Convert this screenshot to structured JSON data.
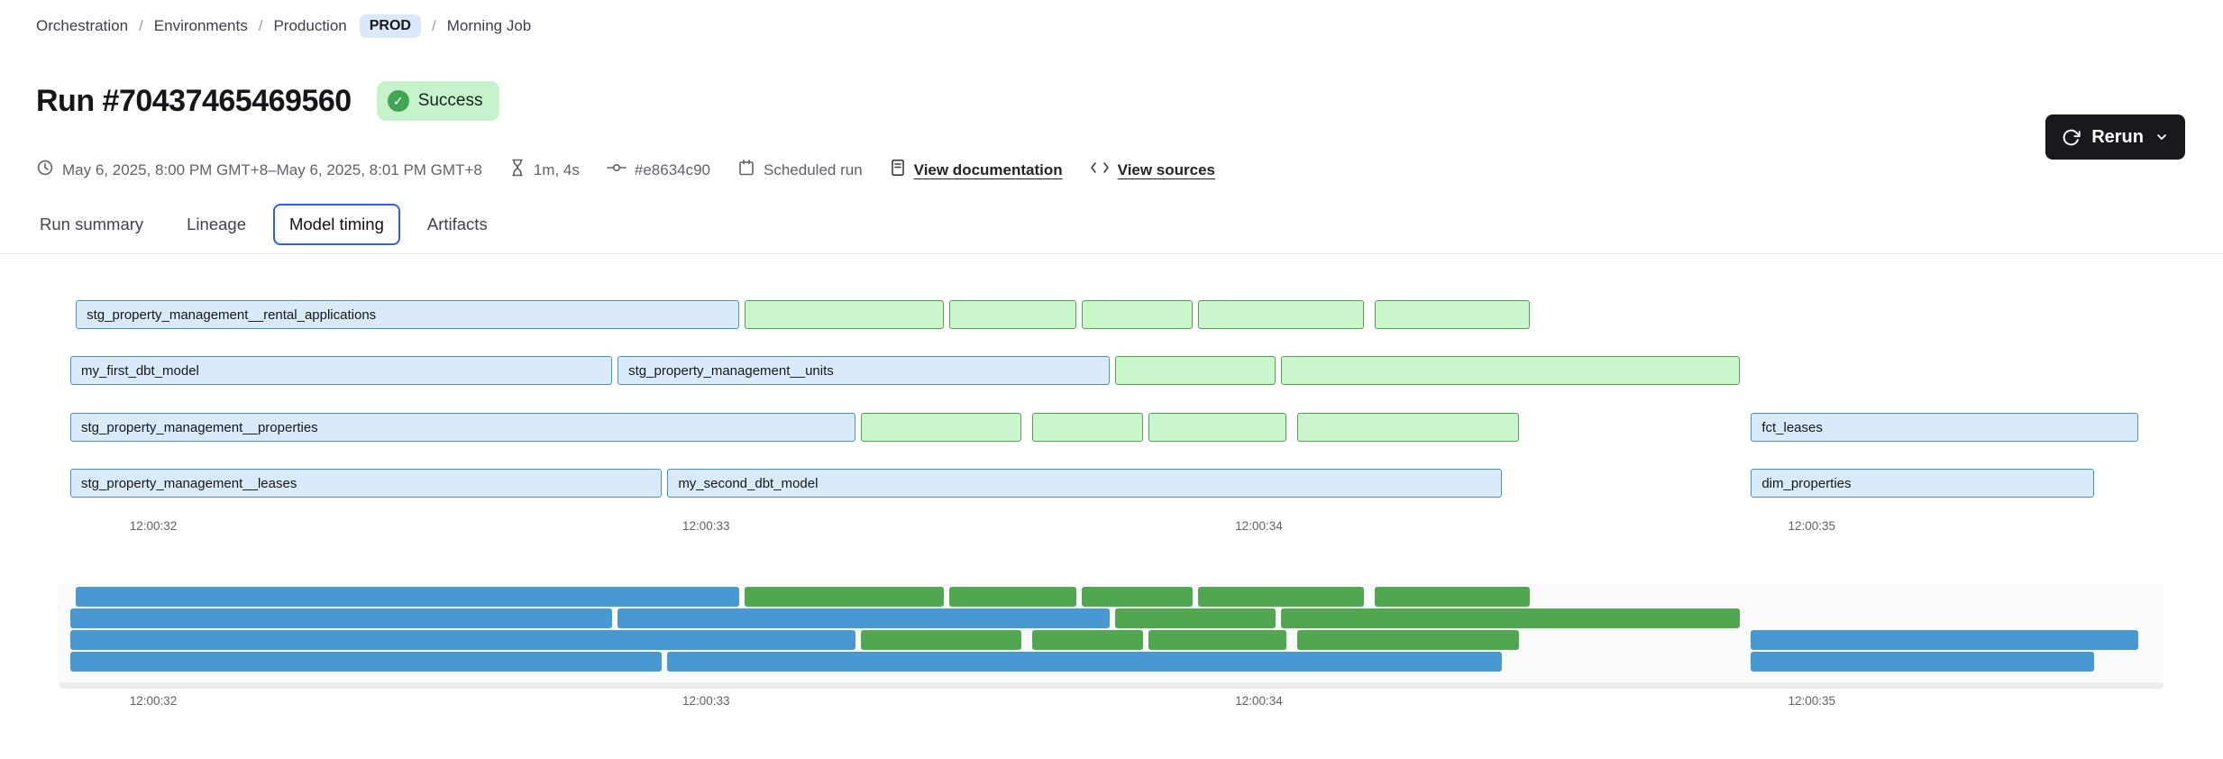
{
  "breadcrumb": {
    "separator": "/",
    "orchestration": "Orchestration",
    "environments": "Environments",
    "production": "Production",
    "env_badge": "PROD",
    "job": "Morning Job"
  },
  "header": {
    "title": "Run #70437465469560",
    "status": "Success"
  },
  "toolbar": {
    "rerun_label": "Rerun"
  },
  "meta": {
    "time_range": "May 6, 2025, 8:00 PM GMT+8–May 6, 2025, 8:01 PM GMT+8",
    "duration": "1m, 4s",
    "commit": "#e8634c90",
    "trigger": "Scheduled run",
    "view_documentation": "View documentation",
    "view_sources": "View sources"
  },
  "tabs": [
    {
      "label": "Run summary",
      "active": false
    },
    {
      "label": "Lineage",
      "active": false
    },
    {
      "label": "Model timing",
      "active": true
    },
    {
      "label": "Artifacts",
      "active": false
    }
  ],
  "colors": {
    "bar_blue_fill": "#d9eafb",
    "bar_blue_border": "#4792c8",
    "bar_green_fill": "#c9f7cb",
    "bar_green_border": "#55a055",
    "minimap_blue": "#4799d1",
    "minimap_green": "#4fa74f",
    "tab_active_outline": "#2e62d9",
    "success_bg": "#c6f3cc",
    "success_dot": "#43a554",
    "prod_badge_bg": "#dce7fc",
    "rerun_bg": "#17191d",
    "axis_text": "#5f6368",
    "meta_text": "#5f6368"
  },
  "chart_data": {
    "type": "gantt",
    "title": "Model timing",
    "x_axis": {
      "min_s": 31.85,
      "max_s": 35.62,
      "ticks": [
        {
          "s": 32,
          "label": "12:00:32"
        },
        {
          "s": 33,
          "label": "12:00:33"
        },
        {
          "s": 34,
          "label": "12:00:34"
        },
        {
          "s": 35,
          "label": "12:00:35"
        }
      ]
    },
    "rows": [
      {
        "segments": [
          {
            "label": "stg_property_management__rental_applications",
            "color": "blue",
            "start_s": 31.86,
            "end_s": 33.06
          },
          {
            "label": "",
            "color": "green",
            "start_s": 33.07,
            "end_s": 33.43
          },
          {
            "label": "",
            "color": "green",
            "start_s": 33.44,
            "end_s": 33.67
          },
          {
            "label": "",
            "color": "green",
            "start_s": 33.68,
            "end_s": 33.88
          },
          {
            "label": "",
            "color": "green",
            "start_s": 33.89,
            "end_s": 34.19
          },
          {
            "label": "",
            "color": "green",
            "start_s": 34.21,
            "end_s": 34.49
          }
        ]
      },
      {
        "segments": [
          {
            "label": "my_first_dbt_model",
            "color": "blue",
            "start_s": 31.85,
            "end_s": 32.83
          },
          {
            "label": "stg_property_management__units",
            "color": "blue",
            "start_s": 32.84,
            "end_s": 33.73
          },
          {
            "label": "",
            "color": "green",
            "start_s": 33.74,
            "end_s": 34.03
          },
          {
            "label": "",
            "color": "green",
            "start_s": 34.04,
            "end_s": 34.87
          }
        ]
      },
      {
        "segments": [
          {
            "label": "stg_property_management__properties",
            "color": "blue",
            "start_s": 31.85,
            "end_s": 33.27
          },
          {
            "label": "",
            "color": "green",
            "start_s": 33.28,
            "end_s": 33.57
          },
          {
            "label": "",
            "color": "green",
            "start_s": 33.59,
            "end_s": 33.79
          },
          {
            "label": "",
            "color": "green",
            "start_s": 33.8,
            "end_s": 34.05
          },
          {
            "label": "",
            "color": "green",
            "start_s": 34.07,
            "end_s": 34.47
          },
          {
            "label": "fct_leases",
            "color": "blue",
            "start_s": 34.89,
            "end_s": 35.59
          }
        ]
      },
      {
        "segments": [
          {
            "label": "stg_property_management__leases",
            "color": "blue",
            "start_s": 31.85,
            "end_s": 32.92
          },
          {
            "label": "my_second_dbt_model",
            "color": "blue",
            "start_s": 32.93,
            "end_s": 34.44
          },
          {
            "label": "dim_properties",
            "color": "blue",
            "start_s": 34.89,
            "end_s": 35.51
          }
        ]
      }
    ]
  }
}
